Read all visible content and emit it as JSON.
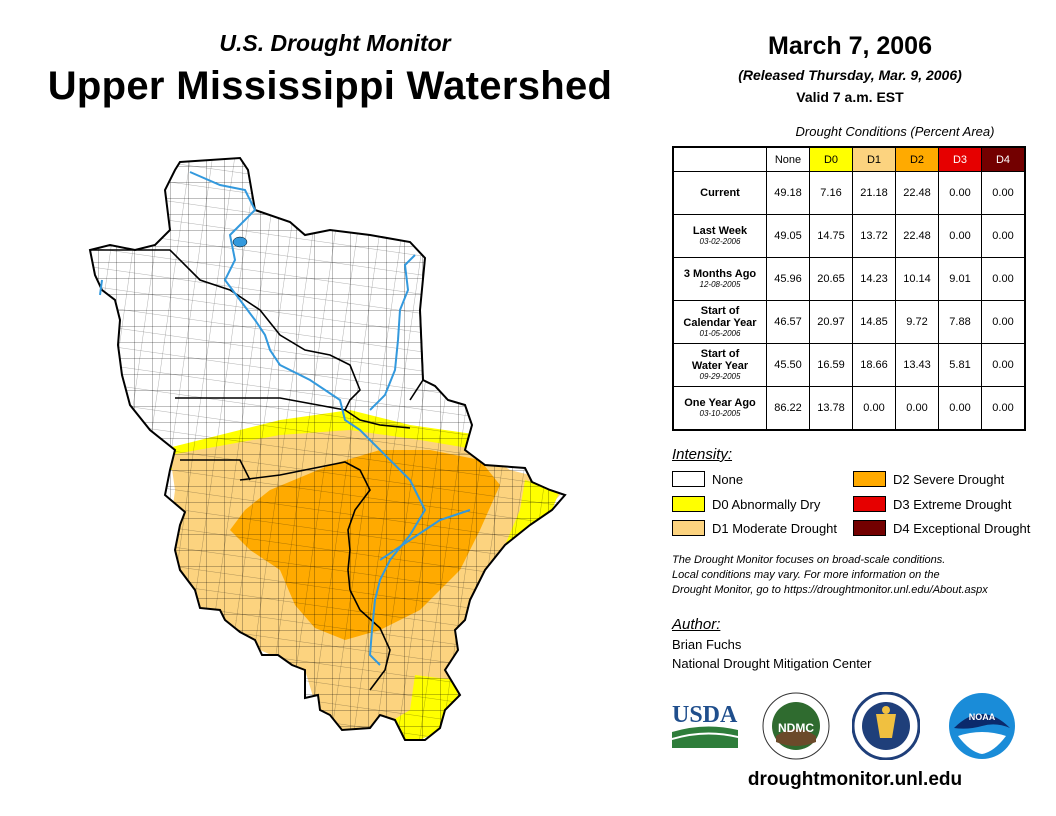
{
  "header": {
    "subtitle": "U.S. Drought Monitor",
    "title": "Upper Mississippi Watershed"
  },
  "info": {
    "date": "March 7, 2006",
    "released": "(Released Thursday, Mar. 9, 2006)",
    "valid": "Valid 7 a.m. EST"
  },
  "table": {
    "caption": "Drought Conditions (Percent Area)",
    "columns": [
      "None",
      "D0",
      "D1",
      "D2",
      "D3",
      "D4"
    ],
    "rows": [
      {
        "label": "Current",
        "label2": "",
        "date": "",
        "values": [
          "49.18",
          "7.16",
          "21.18",
          "22.48",
          "0.00",
          "0.00"
        ]
      },
      {
        "label": "Last Week",
        "label2": "",
        "date": "03-02-2006",
        "values": [
          "49.05",
          "14.75",
          "13.72",
          "22.48",
          "0.00",
          "0.00"
        ]
      },
      {
        "label": "3 Months Ago",
        "label2": "",
        "date": "12-08-2005",
        "values": [
          "45.96",
          "20.65",
          "14.23",
          "10.14",
          "9.01",
          "0.00"
        ]
      },
      {
        "label": "Start of",
        "label2": "Calendar Year",
        "date": "01-05-2006",
        "values": [
          "46.57",
          "20.97",
          "14.85",
          "9.72",
          "7.88",
          "0.00"
        ]
      },
      {
        "label": "Start of",
        "label2": "Water Year",
        "date": "09-29-2005",
        "values": [
          "45.50",
          "16.59",
          "18.66",
          "13.43",
          "5.81",
          "0.00"
        ]
      },
      {
        "label": "One Year Ago",
        "label2": "",
        "date": "03-10-2005",
        "values": [
          "86.22",
          "13.78",
          "0.00",
          "0.00",
          "0.00",
          "0.00"
        ]
      }
    ]
  },
  "legend": {
    "title": "Intensity:",
    "items": [
      {
        "label": "None",
        "color": "#ffffff"
      },
      {
        "label": "D0 Abnormally Dry",
        "color": "#ffff00"
      },
      {
        "label": "D1 Moderate Drought",
        "color": "#fcd37f"
      },
      {
        "label": "D2 Severe Drought",
        "color": "#ffaa00"
      },
      {
        "label": "D3 Extreme Drought",
        "color": "#e60000"
      },
      {
        "label": "D4 Exceptional Drought",
        "color": "#730000"
      }
    ]
  },
  "note": {
    "line1": "The Drought Monitor focuses on broad-scale conditions.",
    "line2": "Local conditions may vary. For more information on the",
    "line3": "Drought Monitor, go to https://droughtmonitor.unl.edu/About.aspx"
  },
  "author": {
    "title": "Author:",
    "name": "Brian Fuchs",
    "org": "National Drought Mitigation Center"
  },
  "logos": {
    "usda": "USDA",
    "ndmc": "NDMC",
    "noaa": "NOAA"
  },
  "footer": {
    "url": "droughtmonitor.unl.edu"
  },
  "colors": {
    "water": "#3399dd",
    "header_none": "#ffffff",
    "header_d0": "#ffff00",
    "header_d1": "#fcd37f",
    "header_d2": "#ffaa00",
    "header_d3": "#e60000",
    "header_d4": "#730000"
  }
}
